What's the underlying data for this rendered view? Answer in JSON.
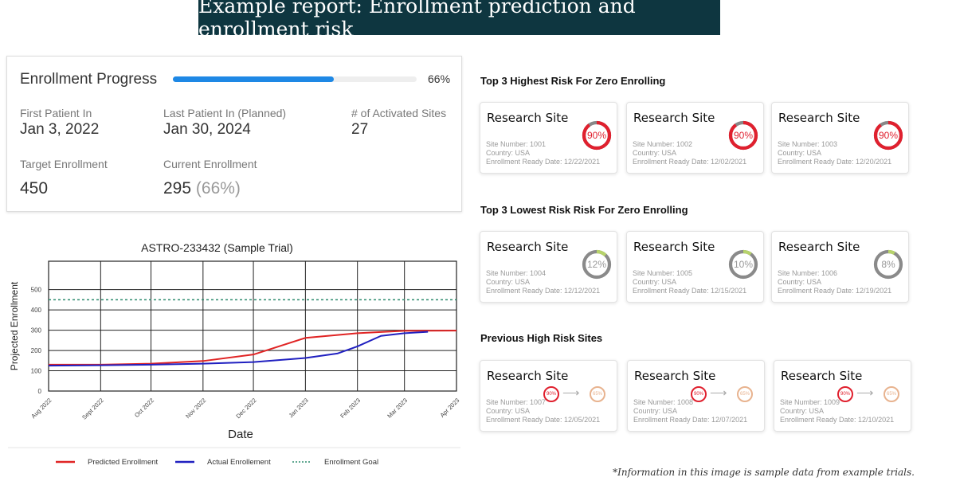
{
  "banner_title": "Example report: Enrollment prediction and enrollment risk",
  "progress": {
    "title": "Enrollment Progress",
    "percent": 66,
    "percent_label": "66%",
    "first_patient_label": "First Patient In",
    "first_patient_value": "Jan 3, 2022",
    "last_patient_label": "Last Patient In (Planned)",
    "last_patient_value": "Jan 30, 2024",
    "sites_label": "# of Activated Sites",
    "sites_value": "27",
    "target_label": "Target Enrollment",
    "target_value": "450",
    "current_label": "Current Enrollment",
    "current_value": "295",
    "current_pct": "(66%)"
  },
  "chart_data": {
    "type": "line",
    "title": "ASTRO-233432 (Sample Trial)",
    "xlabel": "Date",
    "ylabel": "Projected Enrollment",
    "x_ticks": [
      "Aug 2022",
      "Sept 2022",
      "Oct 2022",
      "Nov 2022",
      "Dec 2022",
      "Jan 2023",
      "Feb 2023",
      "Mar 2023",
      "Apr 2023"
    ],
    "y_ticks": [
      0,
      100,
      200,
      300,
      400,
      500
    ],
    "ylim": [
      0,
      640
    ],
    "grid": true,
    "legend_position": "bottom",
    "series": [
      {
        "name": "Predicted Enrollment",
        "color": "#e02424",
        "style": "solid",
        "x": [
          "2022-08-01",
          "2022-09-01",
          "2022-10-01",
          "2022-11-01",
          "2022-12-01",
          "2023-01-01",
          "2023-02-01",
          "2023-03-01",
          "2023-04-01"
        ],
        "y": [
          130,
          130,
          135,
          148,
          180,
          262,
          285,
          297,
          298
        ]
      },
      {
        "name": "Actual Enrollement",
        "color": "#2020c0",
        "style": "solid",
        "x": [
          "2022-08-01",
          "2022-09-01",
          "2022-10-01",
          "2022-11-01",
          "2022-12-01",
          "2023-01-01",
          "2023-01-20",
          "2023-02-01",
          "2023-02-15",
          "2023-03-01",
          "2023-03-15"
        ],
        "y": [
          125,
          127,
          130,
          135,
          143,
          163,
          185,
          220,
          272,
          285,
          292
        ]
      },
      {
        "name": "Enrollment Goal",
        "color": "#2e8b6e",
        "style": "dotted",
        "x": [
          "2022-08-01",
          "2023-04-01"
        ],
        "y": [
          450,
          450
        ]
      }
    ]
  },
  "sections": [
    {
      "title": "Top 3 Highest Risk For Zero Enrolling",
      "type": "high",
      "cards": [
        {
          "name": "Research Site",
          "site": "Site Number:  1001",
          "country": "Country: USA",
          "date": "Enrollment Ready Date: 12/22/2021",
          "risk": 90,
          "risk_label": "90%"
        },
        {
          "name": "Research Site",
          "site": "Site Number:  1002",
          "country": "Country: USA",
          "date": "Enrollment Ready Date: 12/02/2021",
          "risk": 90,
          "risk_label": "90%"
        },
        {
          "name": "Research Site",
          "site": "Site Number:  1003",
          "country": "Country: USA",
          "date": "Enrollment Ready Date: 12/20/2021",
          "risk": 90,
          "risk_label": "90%"
        }
      ]
    },
    {
      "title": "Top 3 Lowest Risk Risk For Zero Enrolling",
      "type": "low",
      "cards": [
        {
          "name": "Research Site",
          "site": "Site Number:  1004",
          "country": "Country: USA",
          "date": "Enrollment Ready Date: 12/12/2021",
          "risk": 12,
          "risk_label": "12%"
        },
        {
          "name": "Research Site",
          "site": "Site Number:  1005",
          "country": "Country: USA",
          "date": "Enrollment Ready Date: 12/15/2021",
          "risk": 10,
          "risk_label": "10%"
        },
        {
          "name": "Research Site",
          "site": "Site Number:  1006",
          "country": "Country: USA",
          "date": "Enrollment Ready Date: 12/19/2021",
          "risk": 8,
          "risk_label": "8%"
        }
      ]
    },
    {
      "title": "Previous High Risk Sites",
      "type": "trend",
      "cards": [
        {
          "name": "Research Site",
          "site": "Site Number:  1007",
          "country": "Country: USA",
          "date": "Enrollment Ready Date: 12/05/2021",
          "from_label": "90%",
          "to_label": "65%"
        },
        {
          "name": "Research Site",
          "site": "Site Number:  1008",
          "country": "Country: USA",
          "date": "Enrollment Ready Date: 12/07/2021",
          "from_label": "90%",
          "to_label": "65%"
        },
        {
          "name": "Research Site",
          "site": "Site Number:  1009",
          "country": "Country: USA",
          "date": "Enrollment Ready Date: 12/10/2021",
          "from_label": "90%",
          "to_label": "65%"
        }
      ]
    }
  ],
  "colors": {
    "banner": "#0e3640",
    "progress": "#1e88e5",
    "high_risk": "#e0202e",
    "low_risk_track": "#8a8a8a",
    "low_risk_arc": "#b7d36b",
    "improved": "#e8b38f"
  },
  "footnote": "*Information in this image is sample data from example trials."
}
